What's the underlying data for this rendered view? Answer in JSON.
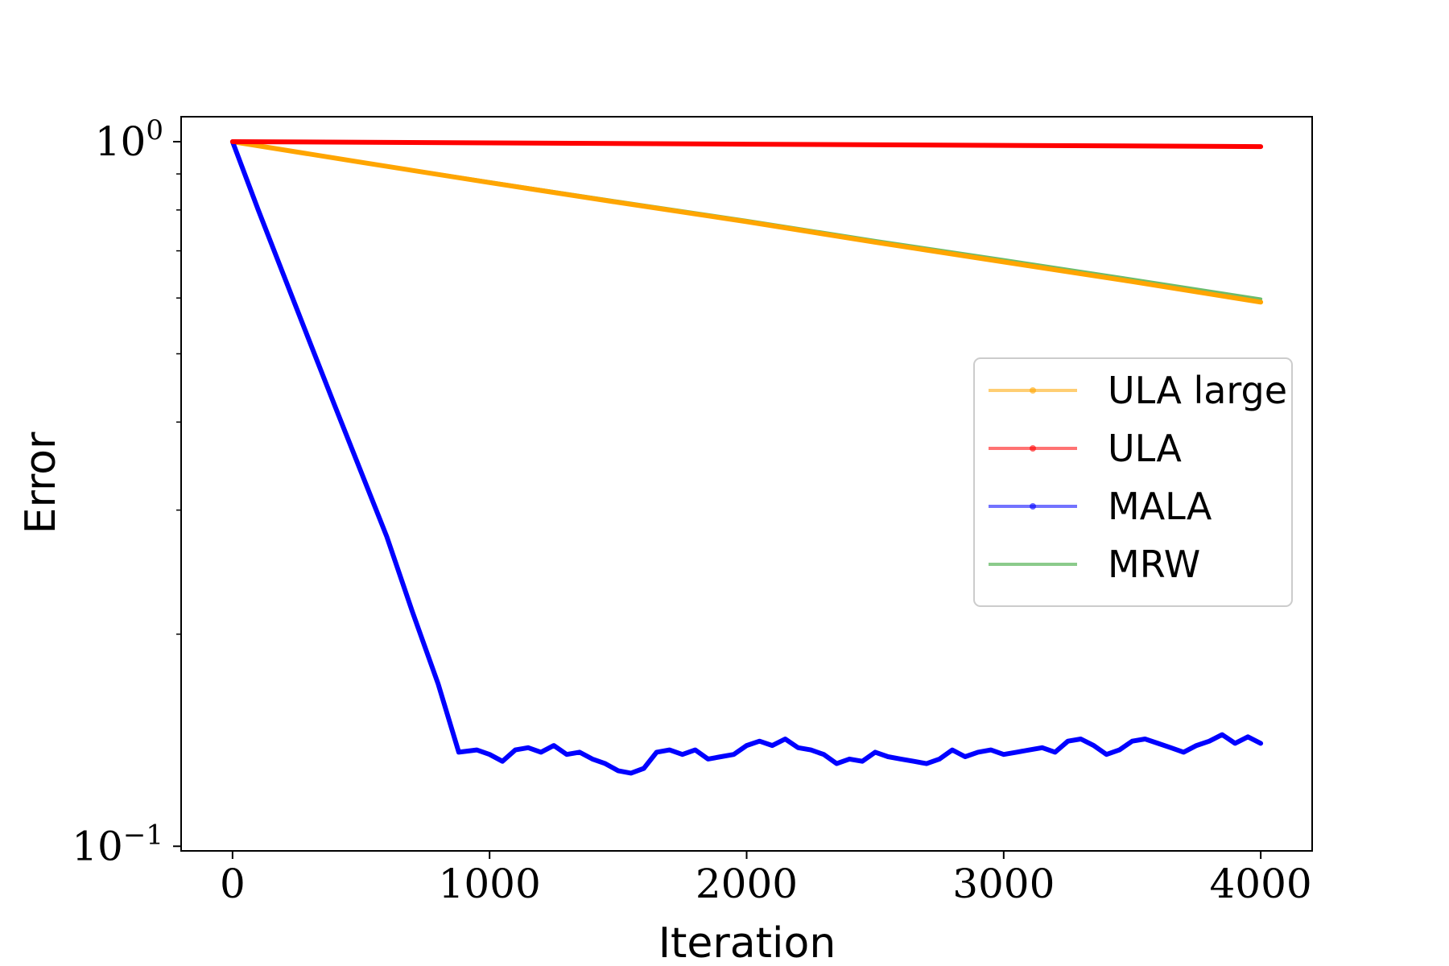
{
  "chart_data": {
    "type": "line",
    "xlabel": "Iteration",
    "ylabel": "Error",
    "xlim": [
      -200,
      4200
    ],
    "ylim": [
      0.0985,
      1.085
    ],
    "yscale": "log",
    "xticks": [
      0,
      1000,
      2000,
      3000,
      4000
    ],
    "xtick_labels": [
      "0",
      "1000",
      "2000",
      "3000",
      "4000"
    ],
    "yticks": [
      {
        "value": 1.0,
        "base": "10",
        "exp": "0"
      },
      {
        "value": 0.1,
        "base": "10",
        "exp": "−1"
      }
    ],
    "grid": false,
    "legend_position": "center-right",
    "series": [
      {
        "name": "ULA large",
        "color": "#FFA500",
        "x": [
          0,
          500,
          1000,
          1500,
          2000,
          2500,
          3000,
          3500,
          4000
        ],
        "y": [
          1.0,
          0.935,
          0.875,
          0.82,
          0.77,
          0.72,
          0.675,
          0.633,
          0.592
        ]
      },
      {
        "name": "ULA",
        "color": "#FF0000",
        "x": [
          0,
          1000,
          2000,
          3000,
          4000
        ],
        "y": [
          1.0,
          0.996,
          0.992,
          0.988,
          0.984
        ]
      },
      {
        "name": "MALA",
        "color": "#0000FF",
        "x": [
          0,
          100,
          200,
          300,
          400,
          500,
          600,
          700,
          800,
          880,
          950,
          1000,
          1050,
          1100,
          1150,
          1200,
          1250,
          1300,
          1350,
          1400,
          1450,
          1500,
          1550,
          1600,
          1650,
          1700,
          1750,
          1800,
          1850,
          1900,
          1950,
          2000,
          2050,
          2100,
          2150,
          2200,
          2250,
          2300,
          2350,
          2400,
          2450,
          2500,
          2550,
          2600,
          2650,
          2700,
          2750,
          2800,
          2850,
          2900,
          2950,
          3000,
          3050,
          3100,
          3150,
          3200,
          3250,
          3300,
          3350,
          3400,
          3450,
          3500,
          3550,
          3600,
          3650,
          3700,
          3750,
          3800,
          3850,
          3900,
          3950,
          4000
        ],
        "y": [
          1.0,
          0.8,
          0.645,
          0.52,
          0.42,
          0.34,
          0.275,
          0.215,
          0.17,
          0.136,
          0.137,
          0.135,
          0.132,
          0.137,
          0.138,
          0.136,
          0.139,
          0.135,
          0.136,
          0.133,
          0.131,
          0.128,
          0.127,
          0.129,
          0.136,
          0.137,
          0.135,
          0.137,
          0.133,
          0.134,
          0.135,
          0.139,
          0.141,
          0.139,
          0.142,
          0.138,
          0.137,
          0.135,
          0.131,
          0.133,
          0.132,
          0.136,
          0.134,
          0.133,
          0.132,
          0.131,
          0.133,
          0.137,
          0.134,
          0.136,
          0.137,
          0.135,
          0.136,
          0.137,
          0.138,
          0.136,
          0.141,
          0.142,
          0.139,
          0.135,
          0.137,
          0.141,
          0.142,
          0.14,
          0.138,
          0.136,
          0.139,
          0.141,
          0.144,
          0.14,
          0.143,
          0.14
        ]
      },
      {
        "name": "MRW",
        "color": "#2CA02C",
        "x": [
          0,
          500,
          1000,
          1500,
          2000,
          2500,
          3000,
          3500,
          4000
        ],
        "y": [
          1.0,
          0.936,
          0.877,
          0.823,
          0.773,
          0.724,
          0.68,
          0.638,
          0.598
        ]
      }
    ]
  }
}
